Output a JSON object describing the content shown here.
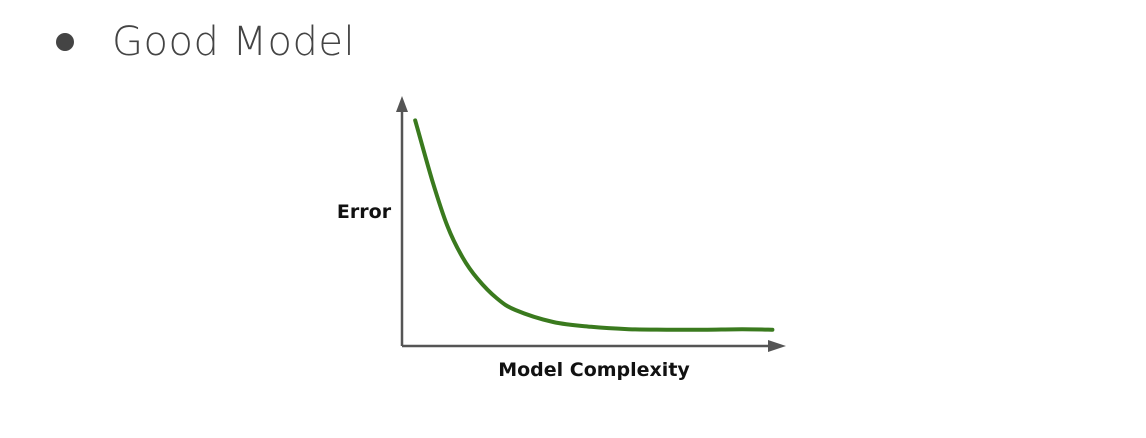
{
  "slide": {
    "bullet_text": "Good Model"
  },
  "colors": {
    "axis": "#555555",
    "curve": "#3a7a1e",
    "text": "#111111",
    "title": "#444444"
  },
  "chart_data": {
    "type": "line",
    "title": "",
    "xlabel": "Model Complexity",
    "ylabel": "Error",
    "xlim": [
      0,
      10
    ],
    "ylim": [
      0,
      10
    ],
    "grid": false,
    "legend": "none",
    "series": [
      {
        "x": [
          0.35,
          0.8,
          1.2,
          1.6,
          2.0,
          2.5,
          3.0,
          4.0,
          5.0,
          6.0,
          7.0,
          8.0,
          9.0,
          9.8
        ],
        "y": [
          9.4,
          6.9,
          5.0,
          3.7,
          2.8,
          2.0,
          1.5,
          1.0,
          0.8,
          0.7,
          0.68,
          0.68,
          0.7,
          0.68
        ]
      }
    ]
  }
}
